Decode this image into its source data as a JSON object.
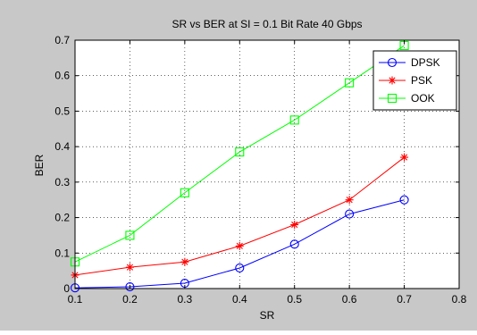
{
  "chart_data": {
    "type": "line",
    "title": "SR vs BER at SI = 0.1  Bit Rate 40 Gbps",
    "xlabel": "SR",
    "ylabel": "BER",
    "xlim": [
      0.1,
      0.8
    ],
    "ylim": [
      0,
      0.7
    ],
    "xticks": [
      "0.1",
      "0.2",
      "0.3",
      "0.4",
      "0.5",
      "0.6",
      "0.7",
      "0.8"
    ],
    "yticks": [
      "0",
      "0.1",
      "0.2",
      "0.3",
      "0.4",
      "0.5",
      "0.6",
      "0.7"
    ],
    "grid": true,
    "legend_position": "top-right",
    "x": [
      0.1,
      0.2,
      0.3,
      0.4,
      0.5,
      0.6,
      0.7
    ],
    "series": [
      {
        "name": "DPSK",
        "color": "#0000ff",
        "marker": "circle",
        "values": [
          0.002,
          0.005,
          0.015,
          0.058,
          0.125,
          0.21,
          0.25
        ]
      },
      {
        "name": "PSK",
        "color": "#ff0000",
        "marker": "star",
        "values": [
          0.038,
          0.06,
          0.075,
          0.12,
          0.18,
          0.25,
          0.37
        ]
      },
      {
        "name": "OOK",
        "color": "#00ff00",
        "marker": "square",
        "values": [
          0.075,
          0.15,
          0.27,
          0.385,
          0.475,
          0.58,
          0.685
        ]
      }
    ]
  }
}
